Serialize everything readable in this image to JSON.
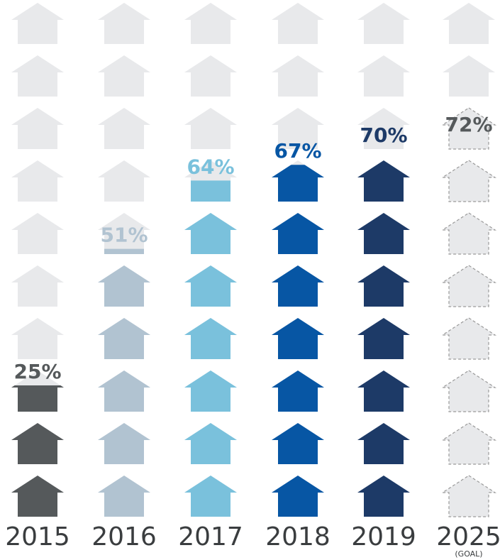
{
  "chart_data": {
    "type": "pictograph",
    "icon": "house-icon",
    "icons_per_column": 10,
    "categories": [
      "2015",
      "2016",
      "2017",
      "2018",
      "2019",
      "2025"
    ],
    "category_notes": [
      "",
      "",
      "",
      "",
      "",
      "(GOAL)"
    ],
    "values": [
      25,
      51,
      64,
      67,
      70,
      72
    ],
    "value_labels": [
      "25%",
      "51%",
      "64%",
      "67%",
      "70%",
      "72%"
    ],
    "unit": "%",
    "ylim": [
      0,
      100
    ],
    "goal_category": "2025",
    "colors": {
      "2015": "#55595b",
      "2016": "#b1c3d1",
      "2017": "#7ac1dc",
      "2018": "#0756a4",
      "2019": "#1d3a67",
      "2025": "#e8e9eb",
      "empty": "#e8e9eb",
      "goal_outline": "#9a9a9a"
    }
  }
}
